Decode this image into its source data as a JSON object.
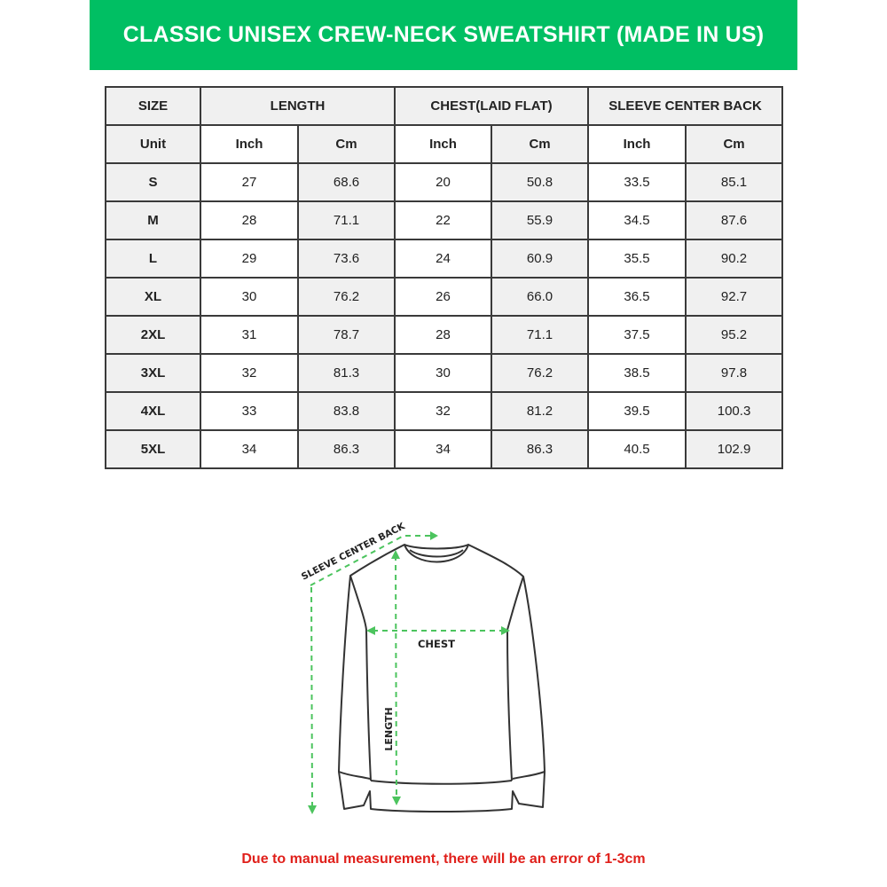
{
  "title": "CLASSIC UNISEX CREW-NECK SWEATSHIRT (MADE IN US)",
  "colors": {
    "banner": "#00bf63",
    "arrows": "#4cc45e",
    "note": "#e0201b"
  },
  "table": {
    "header": {
      "size": "SIZE",
      "length": "LENGTH",
      "chest": "CHEST(LAID FLAT)",
      "sleeve": "SLEEVE CENTER BACK"
    },
    "units": [
      "Unit",
      "Inch",
      "Cm",
      "Inch",
      "Cm",
      "Inch",
      "Cm"
    ],
    "rows": [
      [
        "S",
        "27",
        "68.6",
        "20",
        "50.8",
        "33.5",
        "85.1"
      ],
      [
        "M",
        "28",
        "71.1",
        "22",
        "55.9",
        "34.5",
        "87.6"
      ],
      [
        "L",
        "29",
        "73.6",
        "24",
        "60.9",
        "35.5",
        "90.2"
      ],
      [
        "XL",
        "30",
        "76.2",
        "26",
        "66.0",
        "36.5",
        "92.7"
      ],
      [
        "2XL",
        "31",
        "78.7",
        "28",
        "71.1",
        "37.5",
        "95.2"
      ],
      [
        "3XL",
        "32",
        "81.3",
        "30",
        "76.2",
        "38.5",
        "97.8"
      ],
      [
        "4XL",
        "33",
        "83.8",
        "32",
        "81.2",
        "39.5",
        "100.3"
      ],
      [
        "5XL",
        "34",
        "86.3",
        "34",
        "86.3",
        "40.5",
        "102.9"
      ]
    ]
  },
  "diagram": {
    "sleeve_label": "SLEEVE CENTER BACK",
    "chest_label": "CHEST",
    "length_label": "LENGTH"
  },
  "note": "Due to manual measurement, there will be an error of 1-3cm"
}
